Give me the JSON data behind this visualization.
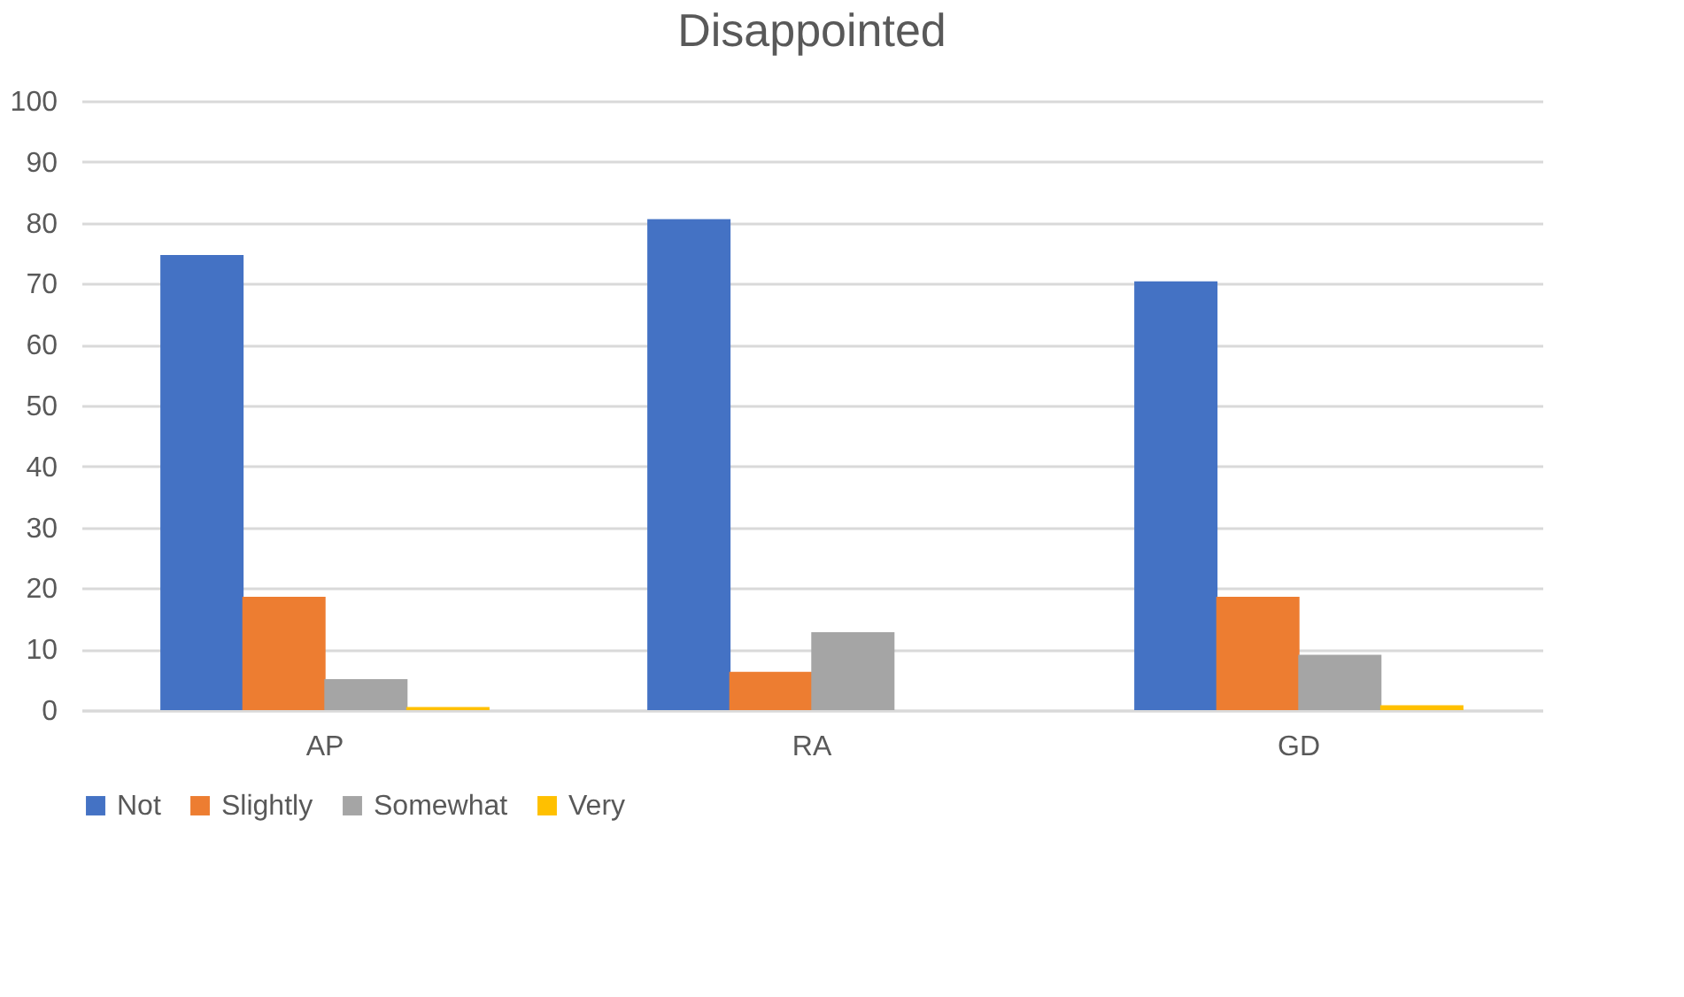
{
  "chart_data": {
    "type": "bar",
    "title": "Disappointed",
    "categories": [
      "AP",
      "RA",
      "GD"
    ],
    "series": [
      {
        "name": "Not",
        "color": "#4472c4",
        "values": [
          74.7,
          80.6,
          70.4
        ]
      },
      {
        "name": "Slightly",
        "color": "#ed7d31",
        "values": [
          18.6,
          6.3,
          18.6
        ]
      },
      {
        "name": "Somewhat",
        "color": "#a5a5a5",
        "values": [
          5.1,
          12.8,
          9.1
        ]
      },
      {
        "name": "Very",
        "color": "#ffc000",
        "values": [
          0.5,
          0,
          0.8
        ]
      }
    ],
    "ylim": [
      0,
      100
    ],
    "yticks": [
      0,
      10,
      20,
      30,
      40,
      50,
      60,
      70,
      80,
      90,
      100
    ],
    "grid": "y",
    "legend": "bottom"
  }
}
